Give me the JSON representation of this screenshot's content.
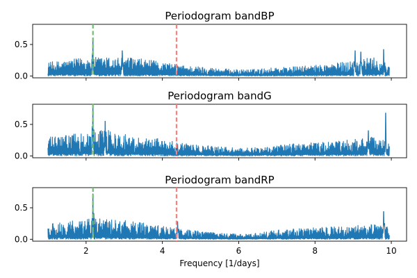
{
  "figure": {
    "xlabel": "Frequency [1/days]"
  },
  "chart_data": [
    {
      "type": "line",
      "title": "Periodogram bandBP",
      "xlabel": "",
      "ylabel": "",
      "xlim": [
        0.6,
        10.4
      ],
      "ylim": [
        -0.03,
        0.82
      ],
      "x_range": [
        1.0,
        9.95
      ],
      "xticks": [
        2,
        4,
        6,
        8,
        10
      ],
      "yticks": [
        0.0,
        0.5
      ],
      "baseline": 0.0,
      "envelope": {
        "x": [
          1.0,
          1.5,
          2.0,
          2.2,
          2.5,
          3.0,
          3.5,
          4.0,
          4.5,
          5.0,
          5.5,
          6.0,
          6.5,
          7.0,
          7.5,
          8.0,
          8.5,
          9.0,
          9.5,
          9.95
        ],
        "y": [
          0.22,
          0.25,
          0.3,
          0.3,
          0.3,
          0.3,
          0.27,
          0.22,
          0.17,
          0.15,
          0.12,
          0.1,
          0.11,
          0.14,
          0.15,
          0.17,
          0.2,
          0.25,
          0.3,
          0.2
        ]
      },
      "peaks": [
        {
          "x": 2.18,
          "y": 0.6
        },
        {
          "x": 2.95,
          "y": 0.4
        },
        {
          "x": 9.05,
          "y": 0.4
        },
        {
          "x": 9.2,
          "y": 0.38
        },
        {
          "x": 9.8,
          "y": 0.42
        }
      ],
      "vlines": [
        {
          "x": 2.18,
          "color": "#6fbf6f",
          "style": "dashed"
        },
        {
          "x": 4.37,
          "color": "#ff7f7f",
          "style": "dashed"
        }
      ],
      "line_color": "#1f77b4"
    },
    {
      "type": "line",
      "title": "Periodogram bandG",
      "xlabel": "",
      "ylabel": "",
      "xlim": [
        0.6,
        10.4
      ],
      "ylim": [
        -0.03,
        0.82
      ],
      "x_range": [
        1.0,
        9.95
      ],
      "xticks": [
        2,
        4,
        6,
        8,
        10
      ],
      "yticks": [
        0.0,
        0.5
      ],
      "baseline": 0.0,
      "envelope": {
        "x": [
          1.0,
          1.5,
          2.0,
          2.2,
          2.5,
          3.0,
          3.5,
          4.0,
          4.5,
          5.0,
          5.5,
          6.0,
          6.5,
          7.0,
          7.5,
          8.0,
          8.5,
          9.0,
          9.5,
          9.95
        ],
        "y": [
          0.3,
          0.33,
          0.38,
          0.4,
          0.42,
          0.35,
          0.3,
          0.28,
          0.2,
          0.17,
          0.15,
          0.12,
          0.14,
          0.17,
          0.2,
          0.21,
          0.23,
          0.26,
          0.3,
          0.22
        ]
      },
      "peaks": [
        {
          "x": 2.18,
          "y": 0.82
        },
        {
          "x": 2.5,
          "y": 0.55
        },
        {
          "x": 9.4,
          "y": 0.4
        },
        {
          "x": 9.85,
          "y": 0.68
        }
      ],
      "vlines": [
        {
          "x": 2.18,
          "color": "#6fbf6f",
          "style": "dashed"
        },
        {
          "x": 4.37,
          "color": "#ff7f7f",
          "style": "dashed"
        }
      ],
      "line_color": "#1f77b4"
    },
    {
      "type": "line",
      "title": "Periodogram bandRP",
      "xlabel": "",
      "ylabel": "",
      "xlim": [
        0.6,
        10.4
      ],
      "ylim": [
        -0.03,
        0.82
      ],
      "x_range": [
        1.0,
        9.95
      ],
      "xticks": [
        2,
        4,
        6,
        8,
        10
      ],
      "yticks": [
        0.0,
        0.5
      ],
      "baseline": 0.0,
      "envelope": {
        "x": [
          1.0,
          1.5,
          2.0,
          2.2,
          2.5,
          3.0,
          3.5,
          4.0,
          4.5,
          5.0,
          5.5,
          6.0,
          6.5,
          7.0,
          7.5,
          8.0,
          8.5,
          9.0,
          9.5,
          9.95
        ],
        "y": [
          0.25,
          0.28,
          0.32,
          0.34,
          0.32,
          0.3,
          0.26,
          0.22,
          0.16,
          0.13,
          0.1,
          0.08,
          0.1,
          0.15,
          0.17,
          0.19,
          0.2,
          0.22,
          0.24,
          0.2
        ]
      },
      "peaks": [
        {
          "x": 2.18,
          "y": 0.72
        },
        {
          "x": 4.4,
          "y": 0.28
        },
        {
          "x": 9.8,
          "y": 0.44
        }
      ],
      "vlines": [
        {
          "x": 2.18,
          "color": "#6fbf6f",
          "style": "dashed"
        },
        {
          "x": 4.37,
          "color": "#ff7f7f",
          "style": "dashed"
        }
      ],
      "line_color": "#1f77b4"
    }
  ]
}
